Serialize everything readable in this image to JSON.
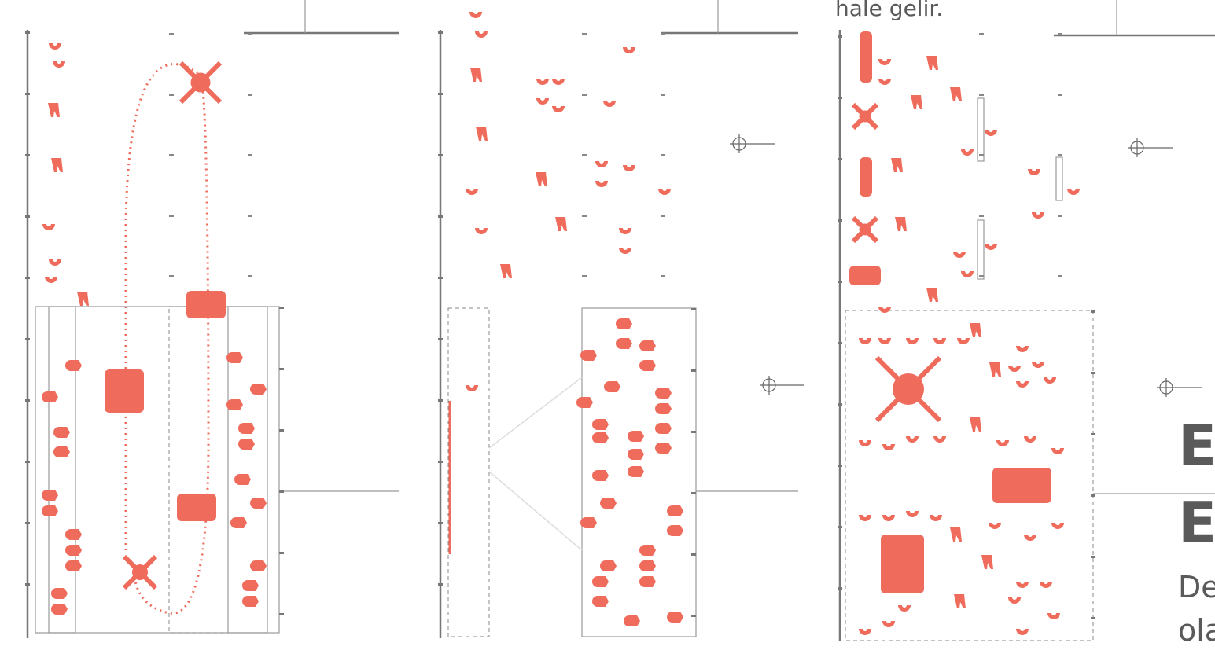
{
  "text": {
    "top_caption": "hale gelir.",
    "heading_line_1": "E",
    "heading_line_2": "E",
    "body_line_1": "De",
    "body_line_2": "ola"
  }
}
